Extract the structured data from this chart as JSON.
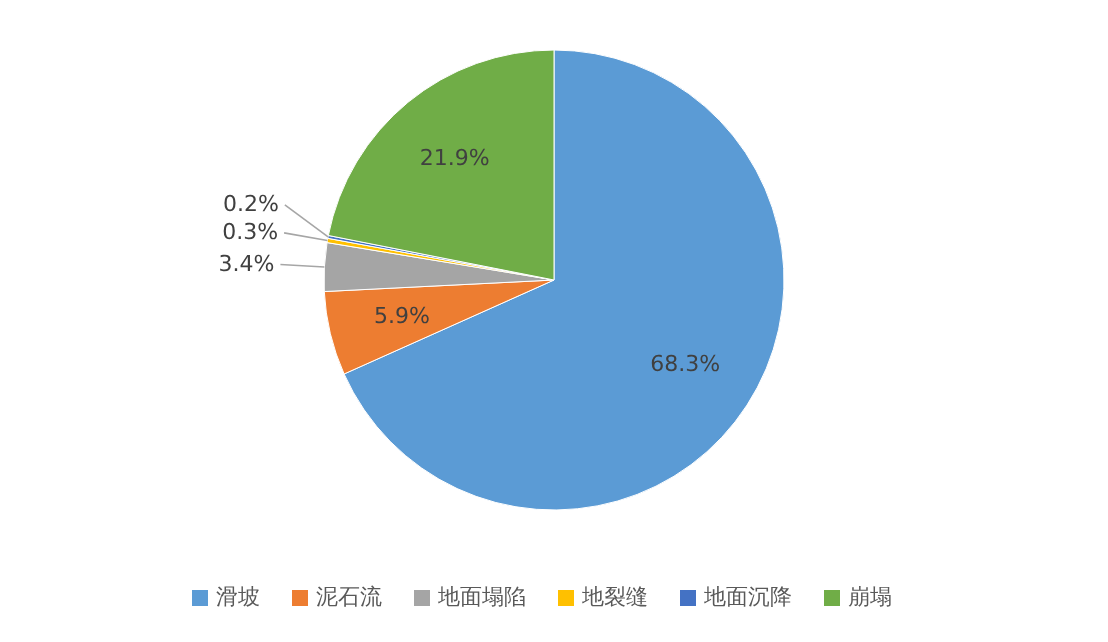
{
  "chart_data": {
    "type": "pie",
    "categories": [
      "滑坡",
      "泥石流",
      "地面塌陷",
      "地裂缝",
      "地面沉降",
      "崩塌"
    ],
    "values": [
      68.3,
      5.9,
      3.4,
      0.3,
      0.2,
      21.9
    ],
    "colors": [
      "#5b9bd5",
      "#ed7d31",
      "#a5a5a5",
      "#ffc000",
      "#4472c4",
      "#70ad47"
    ],
    "value_labels": [
      "68.3%",
      "5.9%",
      "3.4%",
      "0.3%",
      "0.2%",
      "21.9%"
    ],
    "legend": "bottom"
  }
}
